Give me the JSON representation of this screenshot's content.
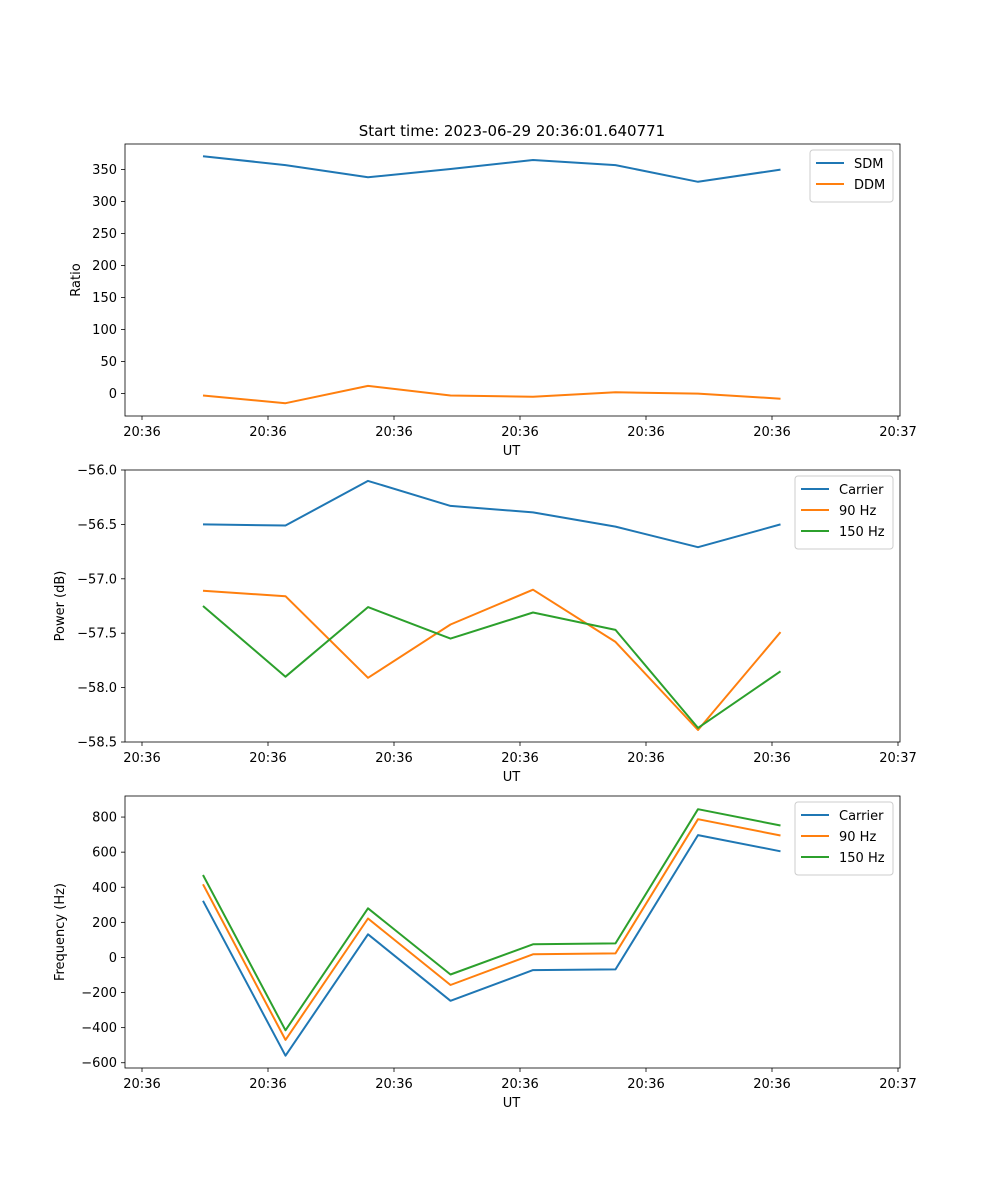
{
  "figure_title": "Start time: 2023-06-29 20:36:01.640771",
  "chart_data": [
    {
      "type": "line",
      "title": "Start time: 2023-06-29 20:36:01.640771",
      "xlabel": "UT",
      "ylabel": "Ratio",
      "x_tick_labels": [
        "20:36",
        "20:36",
        "20:36",
        "20:36",
        "20:36",
        "20:36",
        "20:37"
      ],
      "y_ticks": [
        0,
        50,
        100,
        150,
        200,
        250,
        300,
        350
      ],
      "ylim": [
        -35,
        390
      ],
      "legend_position": "top-right",
      "grid": false,
      "series": [
        {
          "name": "SDM",
          "color": "#1f77b4",
          "values": [
            371,
            357,
            338,
            351,
            365,
            357,
            331,
            350
          ]
        },
        {
          "name": "DDM",
          "color": "#ff7f0e",
          "values": [
            -3,
            -15,
            12,
            -3,
            -5,
            2,
            0,
            -8
          ]
        }
      ]
    },
    {
      "type": "line",
      "xlabel": "UT",
      "ylabel": "Power (dB)",
      "x_tick_labels": [
        "20:36",
        "20:36",
        "20:36",
        "20:36",
        "20:36",
        "20:36",
        "20:37"
      ],
      "y_ticks": [
        -58.5,
        -58.0,
        -57.5,
        -57.0,
        -56.5,
        -56.0
      ],
      "y_tick_labels": [
        "−58.5",
        "−58.0",
        "−57.5",
        "−57.0",
        "−56.5",
        "−56.0"
      ],
      "ylim": [
        -58.5,
        -56.0
      ],
      "legend_position": "top-right",
      "grid": false,
      "series": [
        {
          "name": "Carrier",
          "color": "#1f77b4",
          "values": [
            -56.5,
            -56.51,
            -56.1,
            -56.33,
            -56.39,
            -56.52,
            -56.71,
            -56.5
          ]
        },
        {
          "name": "90 Hz",
          "color": "#ff7f0e",
          "values": [
            -57.11,
            -57.16,
            -57.91,
            -57.42,
            -57.1,
            -57.58,
            -58.39,
            -57.49
          ]
        },
        {
          "name": "150 Hz",
          "color": "#2ca02c",
          "values": [
            -57.25,
            -57.9,
            -57.26,
            -57.55,
            -57.31,
            -57.47,
            -58.37,
            -57.85
          ]
        }
      ]
    },
    {
      "type": "line",
      "xlabel": "UT",
      "ylabel": "Frequency (Hz)",
      "x_tick_labels": [
        "20:36",
        "20:36",
        "20:36",
        "20:36",
        "20:36",
        "20:36",
        "20:37"
      ],
      "y_ticks": [
        -600,
        -400,
        -200,
        0,
        200,
        400,
        600,
        800
      ],
      "y_tick_labels": [
        "−600",
        "−400",
        "−200",
        "0",
        "200",
        "400",
        "600",
        "800"
      ],
      "ylim": [
        -630,
        920
      ],
      "legend_position": "top-right",
      "grid": false,
      "series": [
        {
          "name": "Carrier",
          "color": "#1f77b4",
          "values": [
            323,
            -560,
            132,
            -247,
            -72,
            -68,
            697,
            605
          ]
        },
        {
          "name": "90 Hz",
          "color": "#ff7f0e",
          "values": [
            417,
            -470,
            222,
            -157,
            18,
            23,
            788,
            695
          ]
        },
        {
          "name": "150 Hz",
          "color": "#2ca02c",
          "values": [
            470,
            -415,
            280,
            -97,
            75,
            80,
            845,
            752
          ]
        }
      ]
    }
  ]
}
